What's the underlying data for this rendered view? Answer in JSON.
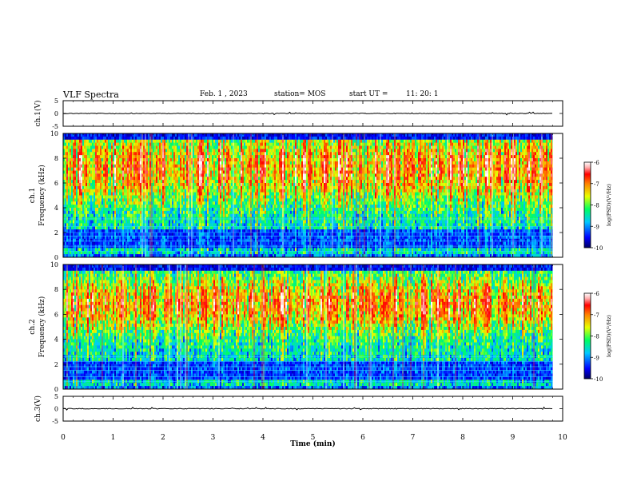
{
  "header": {
    "title": "VLF Spectra",
    "date": "Feb. 1 , 2023",
    "station": "station= MOS",
    "start": "start UT =",
    "start_time": "11: 20: 1"
  },
  "chart_data": [
    {
      "type": "line",
      "panel": "ch1-waveform",
      "ylabel": "ch.1(V)",
      "yticks": [
        "5",
        "0",
        "-5"
      ],
      "ylim": [
        -5,
        5
      ],
      "xlim": [
        0,
        10
      ],
      "baseline_value": 0,
      "series_end_min": 9.8
    },
    {
      "type": "heatmap",
      "panel": "ch1-spectrogram",
      "ylabel": "ch.1\nFrequency (kHz)",
      "yticks": [
        "10",
        "8",
        "6",
        "4",
        "2",
        "0"
      ],
      "ylim": [
        0,
        10
      ],
      "xlim": [
        0,
        10
      ],
      "data_end_min": 9.8,
      "colorbar": {
        "label": "log(PSD)(V²/Hz)",
        "ticks": [
          "-6",
          "-7",
          "-8",
          "-9",
          "-10"
        ],
        "range": [
          -10,
          -6
        ]
      }
    },
    {
      "type": "heatmap",
      "panel": "ch2-spectrogram",
      "ylabel": "ch.2\nFrequency (kHz)",
      "yticks": [
        "10",
        "8",
        "6",
        "4",
        "2",
        "0"
      ],
      "ylim": [
        0,
        10
      ],
      "xlim": [
        0,
        10
      ],
      "data_end_min": 9.8,
      "colorbar": {
        "label": "log(PSD)(V²/Hz)",
        "ticks": [
          "-6",
          "-7",
          "-8",
          "-9",
          "-10"
        ],
        "range": [
          -10,
          -6
        ]
      }
    },
    {
      "type": "line",
      "panel": "ch3-waveform",
      "ylabel": "ch.3(V)",
      "yticks": [
        "5",
        "0",
        "-5"
      ],
      "ylim": [
        -5,
        5
      ],
      "xlim": [
        0,
        10
      ],
      "baseline_value": 0,
      "series_end_min": 9.8
    }
  ],
  "xaxis": {
    "label": "Time (min)",
    "ticks": [
      "0",
      "1",
      "2",
      "3",
      "4",
      "5",
      "6",
      "7",
      "8",
      "9",
      "10"
    ]
  },
  "colors": {
    "scale": [
      "#000060",
      "#0000ff",
      "#00c8ff",
      "#00ff60",
      "#e8ff00",
      "#ff8000",
      "#ff0000",
      "#ffb0b0",
      "#ffffff"
    ]
  }
}
